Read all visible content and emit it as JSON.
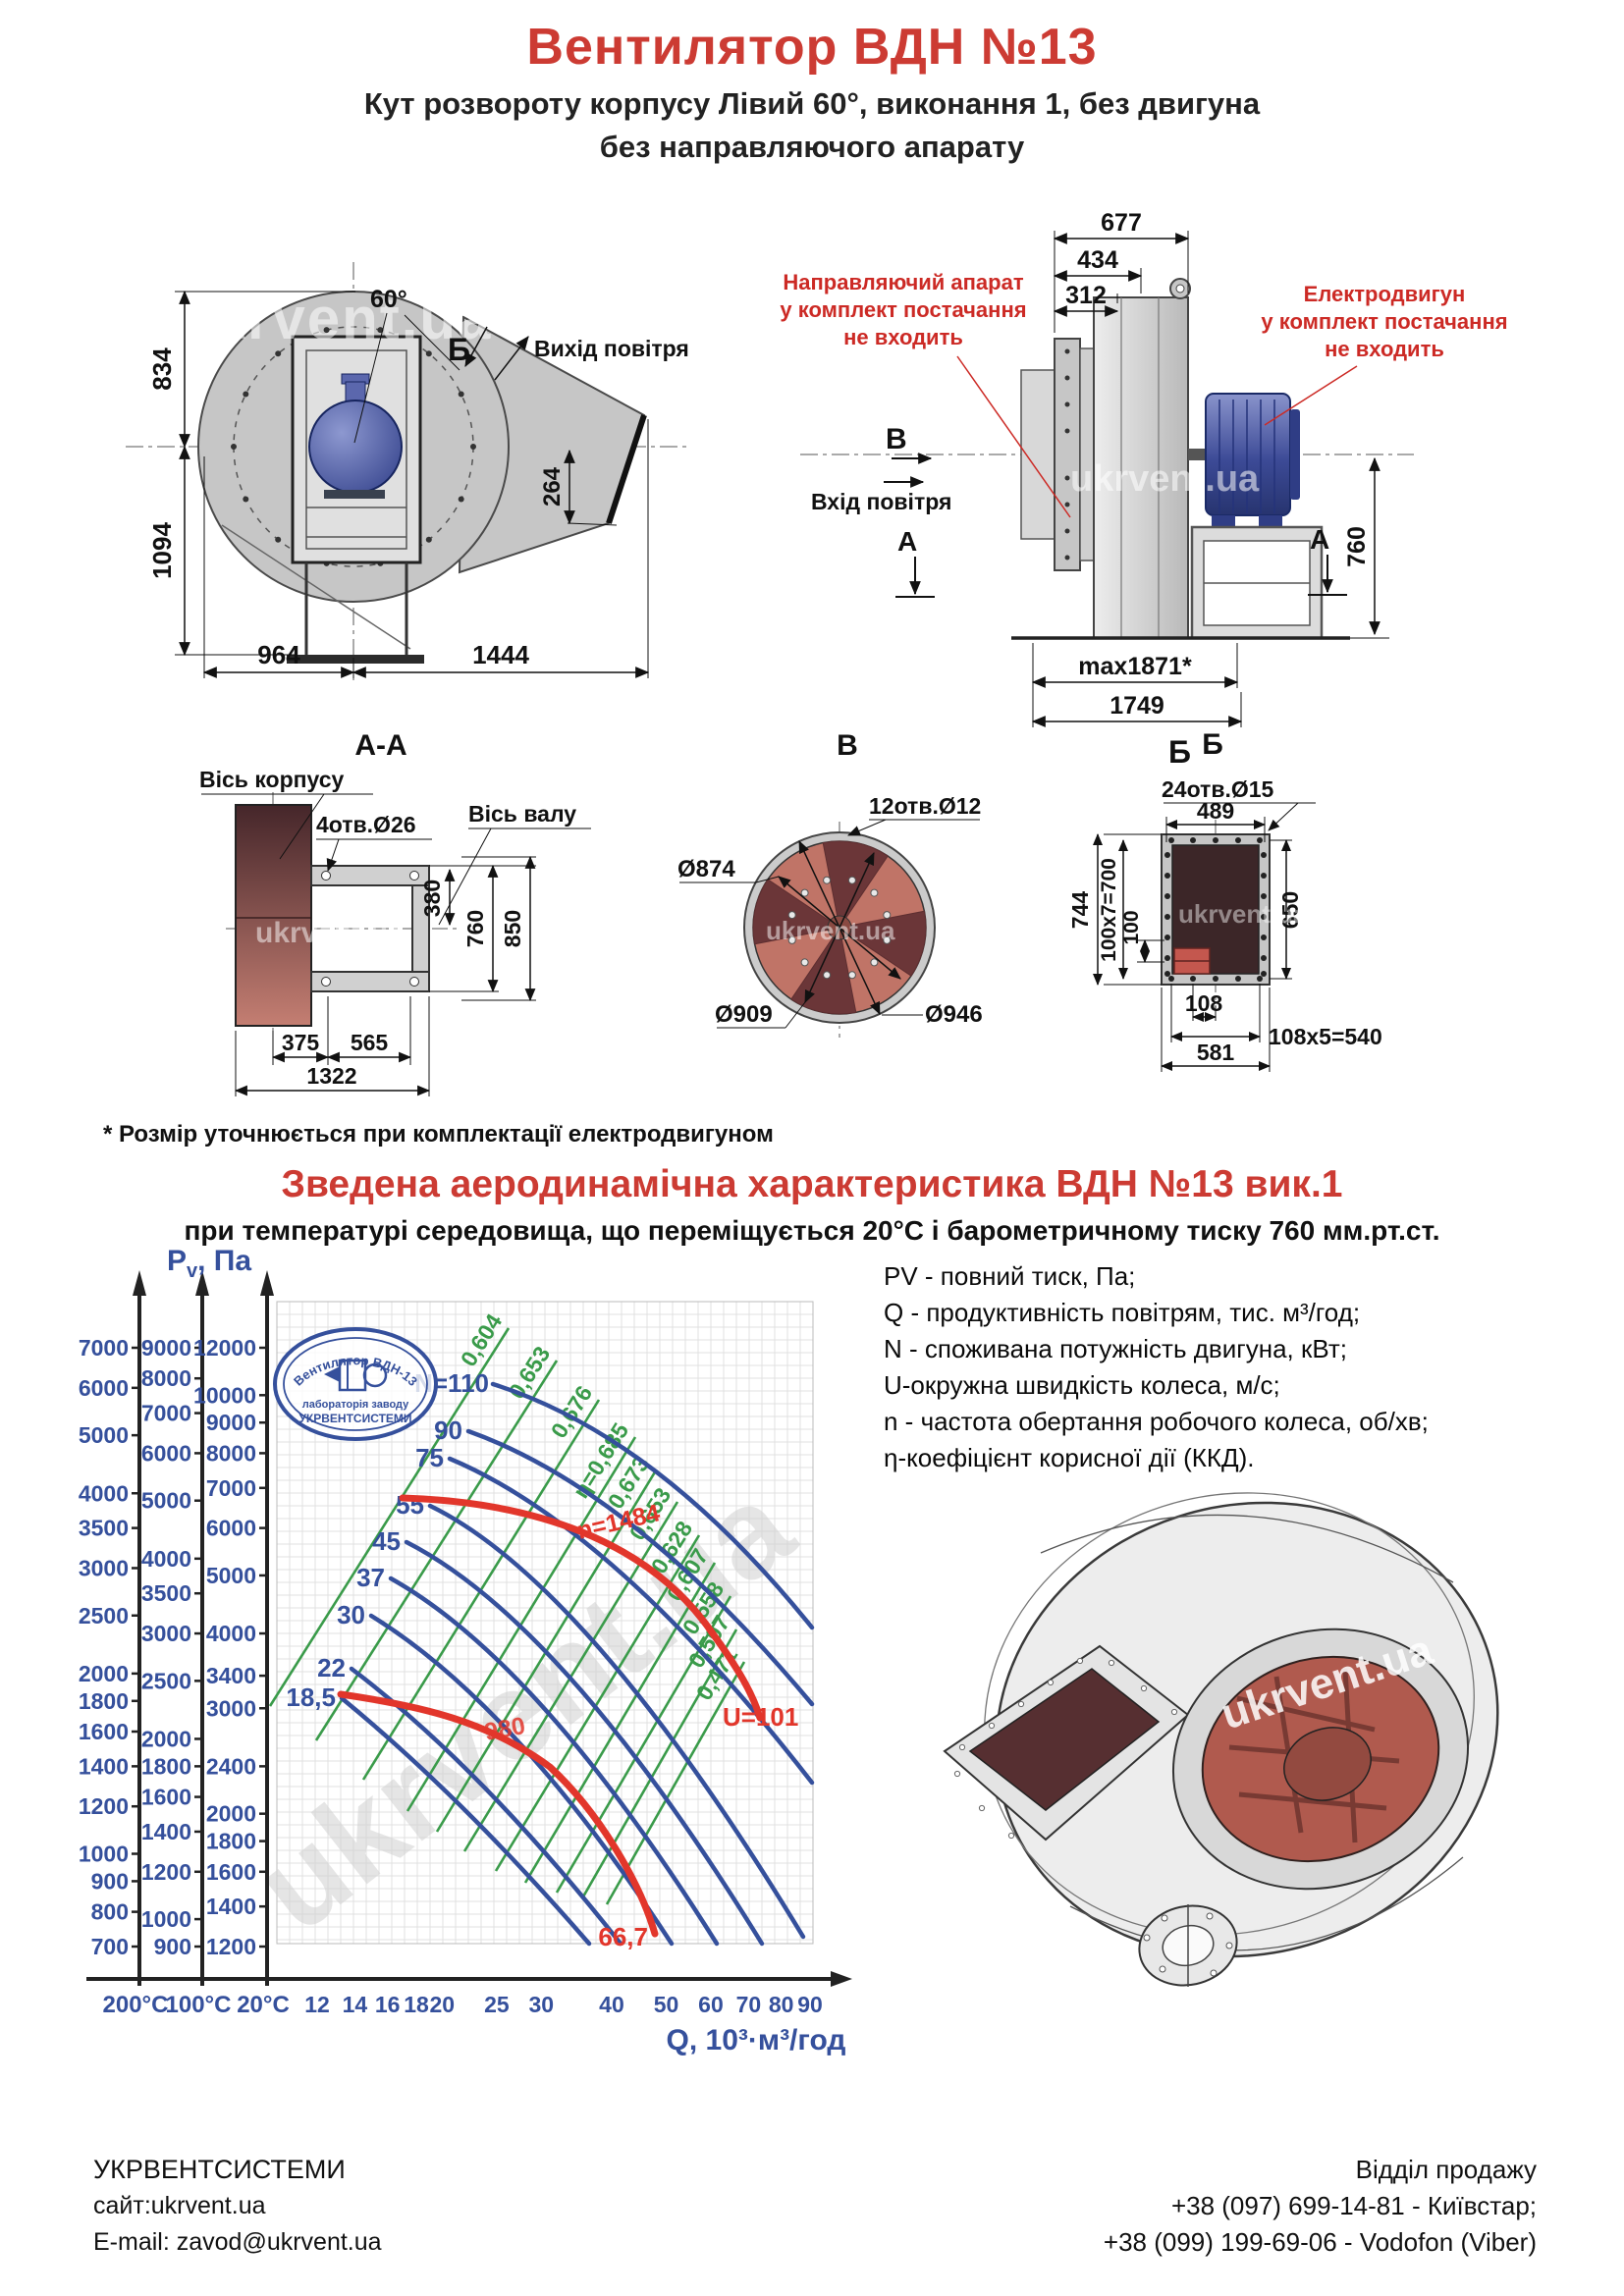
{
  "page": {
    "watermark": "ukrvent.ua"
  },
  "header": {
    "title": "Вентилятор  ВДН №13",
    "subtitle_line1": "Кут розвороту корпусу Лівий 60°, виконання 1, без двигуна",
    "subtitle_line2": "без направляючого апарату"
  },
  "front_view": {
    "angle": "60°",
    "section_mark": "Б",
    "air_out": "Вихід повітря",
    "dim_834": "834",
    "dim_1094": "1094",
    "dim_964": "964",
    "dim_1444": "1444",
    "dim_264": "264"
  },
  "side_view": {
    "dim_677": "677",
    "dim_434": "434",
    "dim_312": "312",
    "dim_760": "760",
    "dim_max": "max1871*",
    "dim_1749": "1749",
    "mark_v": "В",
    "mark_a_left": "А",
    "mark_a_right": "А",
    "mark_b": "Б",
    "air_in": "Вхід повітря",
    "note_guide_1": "Направляючий апарат",
    "note_guide_2": "у комплект постачання",
    "note_guide_3": "не входить",
    "note_motor_1": "Електродвигун",
    "note_motor_2": "у комплект постачання",
    "note_motor_3": "не входить"
  },
  "section_aa": {
    "title": "А-А",
    "label_case_axis": "Вісь корпусу",
    "label_holes": "4отв.Ø26",
    "label_shaft_axis": "Вісь валу",
    "dim_380": "380",
    "dim_760": "760",
    "dim_850": "850",
    "dim_375": "375",
    "dim_565": "565",
    "dim_1322": "1322"
  },
  "section_v": {
    "title": "В",
    "label_holes": "12отв.Ø12",
    "dim_d874": "Ø874",
    "dim_d909": "Ø909",
    "dim_d946": "Ø946"
  },
  "section_b": {
    "title": "Б",
    "label_holes": "24отв.Ø15",
    "dim_489": "489",
    "dim_744": "744",
    "dim_100x7": "100х7=700",
    "dim_100": "100",
    "dim_650": "650",
    "dim_108": "108",
    "dim_108x5": "108х5=540",
    "dim_581": "581"
  },
  "note": "* Розмір уточнюється при комплектації електродвигуном",
  "aero": {
    "title": "Зведена аеродинамічна характеристика ВДН №13 вик.1",
    "subtitle": "при температурі середовища, що переміщується 20°С і барометричному тиску 760 мм.рт.ст."
  },
  "chart_data": {
    "type": "line",
    "title": "Pv, Па",
    "y_label_main": "P",
    "y_label_sub": "v",
    "y_label_units": ", Па",
    "xlabel": "Q, 10³·м³/год",
    "x_ticks": [
      12,
      14,
      16,
      18,
      20,
      25,
      30,
      40,
      50,
      60,
      70,
      80,
      90
    ],
    "temp_axis_labels": [
      "200°C",
      "100°C",
      "20°C"
    ],
    "y_axis_200": [
      700,
      800,
      900,
      1000,
      1200,
      1400,
      1600,
      1800,
      2000,
      2500,
      3000,
      3500,
      4000,
      5000,
      6000,
      7000
    ],
    "y_axis_100": [
      900,
      1000,
      1200,
      1400,
      1600,
      1800,
      2000,
      2500,
      3000,
      3500,
      4000,
      5000,
      6000,
      7000,
      8000,
      9000
    ],
    "y_axis_20": [
      1200,
      1400,
      1600,
      1800,
      2000,
      2400,
      3000,
      3400,
      4000,
      5000,
      6000,
      7000,
      8000,
      9000,
      10000,
      12000
    ],
    "power_curves": [
      "N=110",
      "90",
      "75",
      "55",
      "45",
      "37",
      "30",
      "22",
      "18,5"
    ],
    "efficiency_labels": [
      "0,604",
      "0,653",
      "0,676",
      "η=0,685",
      "0,673",
      "0,653",
      "0,628",
      "0,607",
      "0,558",
      "0,507",
      "0,471"
    ],
    "speed_labels": {
      "n1": "n=1484",
      "u1": "U=101",
      "n2": "980",
      "u2": "66,7"
    },
    "axis_ranges": {
      "x": [
        12,
        90
      ],
      "grid": true,
      "x_scale": "log",
      "y_scale": "log"
    }
  },
  "logo": {
    "top": "Вентилятор ВДН-13",
    "mid": "лабораторія заводу",
    "bottom": "УКРВЕНТСИСТЕМИ"
  },
  "chart_legend": {
    "lines": [
      "PV - повний тиск, Па;",
      "Q - продуктивність повітрям, тис. м³/год;",
      "N - споживана потужність двигуна, кВт;",
      "U-окружна швидкість колеса, м/с;",
      "n - частота обертання робочого колеса, об/хв;",
      "η-коефіцієнт корисної дії (ККД)."
    ]
  },
  "footer": {
    "company": "УКРВЕНТСИСТЕМИ",
    "site": "сайт:ukrvent.ua",
    "email": "E-mail: zavod@ukrvent.ua",
    "dept": "Відділ продажу",
    "phone1": "+38 (097) 699-14-81 - Київстар;",
    "phone2": "+38 (099) 199-69-06 - Vodofon (Viber)"
  }
}
